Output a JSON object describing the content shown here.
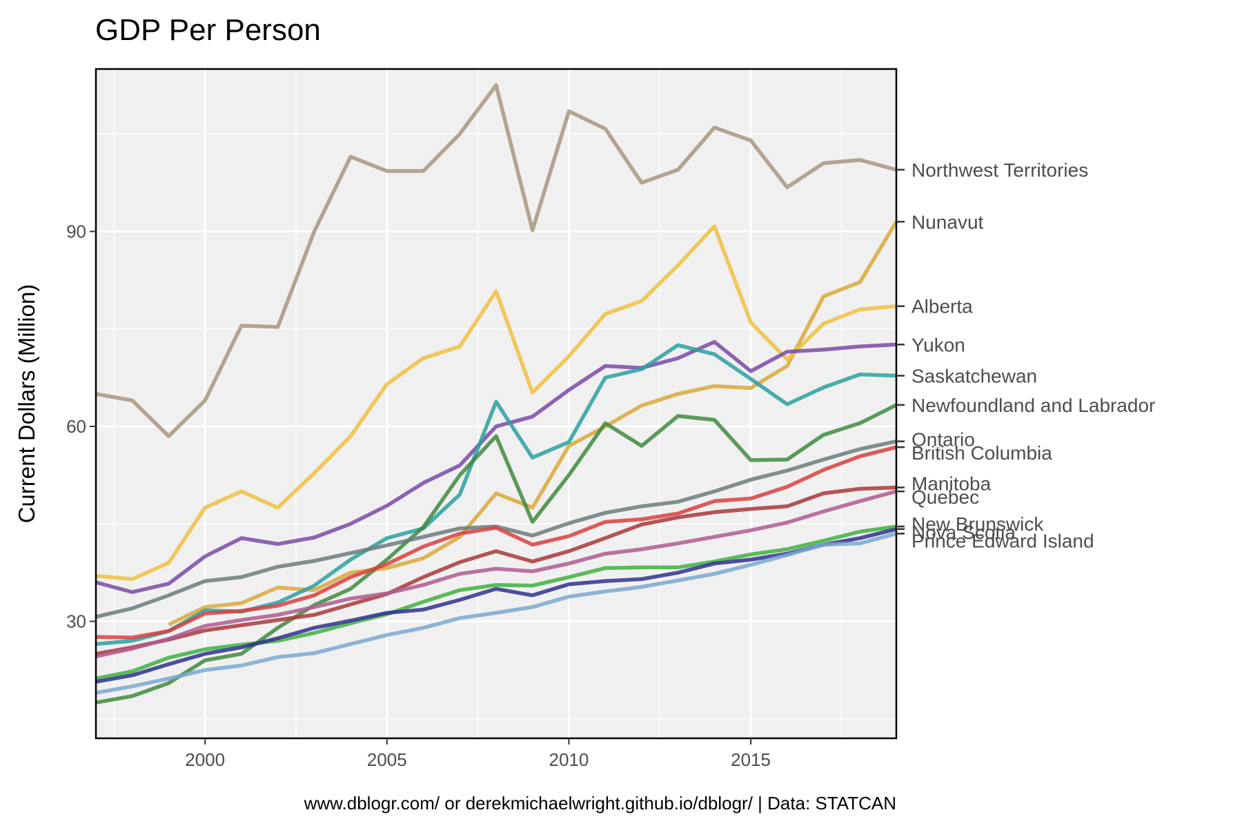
{
  "chart_data": {
    "type": "line",
    "title": "GDP Per Person",
    "xlabel": "",
    "ylabel": "Current Dollars (Million)",
    "caption": "www.dblogr.com/ or derekmichaelwright.github.io/dblogr/ | Data: STATCAN",
    "xlim": [
      1997,
      2019
    ],
    "ylim": [
      12,
      115
    ],
    "x_ticks": [
      2000,
      2005,
      2010,
      2015
    ],
    "y_ticks": [
      30,
      60,
      90
    ],
    "grid": true,
    "legend": "direct labels right",
    "x": [
      1997,
      1998,
      1999,
      2000,
      2001,
      2002,
      2003,
      2004,
      2005,
      2006,
      2007,
      2008,
      2009,
      2010,
      2011,
      2012,
      2013,
      2014,
      2015,
      2016,
      2017,
      2018,
      2019
    ],
    "series": [
      {
        "name": "Northwest Territories",
        "color": "#a89580",
        "values": [
          65,
          64,
          58.5,
          64,
          75.5,
          75.3,
          90,
          101.5,
          99.3,
          99.3,
          105,
          112.5,
          90.2,
          108.5,
          105.8,
          97.5,
          99.5,
          106,
          104,
          96.8,
          100.5,
          101,
          99.5
        ]
      },
      {
        "name": "Nunavut",
        "color": "#d9a838",
        "values": [
          null,
          null,
          29.5,
          32.2,
          32.8,
          35.2,
          34.8,
          37.5,
          38.2,
          39.7,
          43,
          49.7,
          47.5,
          57,
          60,
          63.2,
          65,
          66.2,
          65.9,
          69.3,
          80,
          82.2,
          91.5
        ]
      },
      {
        "name": "Alberta",
        "color": "#f0c040",
        "values": [
          37,
          36.5,
          39,
          47.5,
          50,
          47.5,
          52.8,
          58.5,
          66.5,
          70.5,
          72.3,
          80.8,
          65.2,
          70.8,
          77.3,
          79.3,
          84.8,
          90.8,
          76,
          70.3,
          75.8,
          78,
          78.5
        ]
      },
      {
        "name": "Yukon",
        "color": "#7a4aa8",
        "values": [
          36,
          34.5,
          35.8,
          40,
          42.8,
          41.9,
          42.9,
          45,
          47.8,
          51.3,
          54,
          60,
          61.5,
          65.6,
          69.3,
          69,
          70.5,
          73,
          68.5,
          71.5,
          71.8,
          72.3,
          72.6
        ]
      },
      {
        "name": "Saskatchewan",
        "color": "#2aa0a0",
        "values": [
          26.5,
          27,
          28.5,
          31.7,
          31.5,
          32.9,
          35.5,
          39.5,
          42.8,
          44.3,
          49.5,
          63.8,
          55.2,
          57.6,
          67.5,
          68.8,
          72.5,
          71.1,
          67.3,
          63.4,
          66,
          68,
          67.8
        ]
      },
      {
        "name": "Newfoundland and Labrador",
        "color": "#3f8a3f",
        "values": [
          17.5,
          18.5,
          20.5,
          24,
          25,
          29,
          32.5,
          35,
          39.5,
          44.5,
          52.5,
          58.5,
          45.3,
          52.5,
          60.5,
          57,
          61.6,
          61,
          54.8,
          54.9,
          58.7,
          60.5,
          63.3
        ]
      },
      {
        "name": "Ontario",
        "color": "#6b7b7b",
        "values": [
          30.7,
          32,
          34,
          36.2,
          36.8,
          38.4,
          39.3,
          40.5,
          41.7,
          43,
          44.3,
          44.6,
          43.2,
          45.1,
          46.7,
          47.7,
          48.4,
          50,
          51.8,
          53.2,
          54.9,
          56.5,
          57.7
        ]
      },
      {
        "name": "British Columbia",
        "color": "#d94040",
        "values": [
          27.6,
          27.5,
          28.5,
          31.2,
          31.6,
          32.4,
          34,
          36.8,
          38.8,
          41.5,
          43.5,
          44.4,
          41.8,
          43.1,
          45.3,
          45.7,
          46.6,
          48.5,
          48.9,
          50.7,
          53.3,
          55.4,
          56.8
        ]
      },
      {
        "name": "Manitoba",
        "color": "#a83838",
        "values": [
          25,
          26,
          27.2,
          28.6,
          29.4,
          30.2,
          31,
          32.6,
          34.2,
          36.8,
          39.1,
          40.8,
          39.2,
          40.8,
          42.8,
          44.9,
          46,
          46.8,
          47.3,
          47.7,
          49.7,
          50.4,
          50.6
        ]
      },
      {
        "name": "Quebec",
        "color": "#b05a90",
        "values": [
          24.6,
          25.8,
          27.3,
          29.3,
          30.2,
          31,
          32.2,
          33.5,
          34.3,
          35.6,
          37.3,
          38.1,
          37.7,
          38.9,
          40.4,
          41.1,
          42,
          43,
          44,
          45.2,
          46.9,
          48.5,
          50
        ]
      },
      {
        "name": "New Brunswick",
        "color": "#40b040",
        "values": [
          21.2,
          22.3,
          24.4,
          25.7,
          26.4,
          27,
          28.2,
          29.7,
          31.1,
          33,
          34.8,
          35.6,
          35.5,
          36.8,
          38.2,
          38.3,
          38.3,
          39.2,
          40.3,
          41.1,
          42.4,
          43.8,
          44.6
        ]
      },
      {
        "name": "Nova Scotia",
        "color": "#303090",
        "values": [
          20.7,
          21.7,
          23.4,
          25,
          26,
          27.4,
          29,
          30.1,
          31.3,
          31.8,
          33.3,
          35,
          34,
          35.7,
          36.2,
          36.5,
          37.5,
          38.9,
          39.5,
          40.4,
          41.8,
          42.8,
          44.2
        ]
      },
      {
        "name": "Prince Edward Island",
        "color": "#7aa8d0",
        "values": [
          19,
          20,
          21.2,
          22.5,
          23.2,
          24.5,
          25.1,
          26.5,
          27.9,
          29,
          30.5,
          31.3,
          32.2,
          33.8,
          34.6,
          35.3,
          36.3,
          37.3,
          38.7,
          40.2,
          41.8,
          42,
          43.5
        ]
      }
    ]
  }
}
